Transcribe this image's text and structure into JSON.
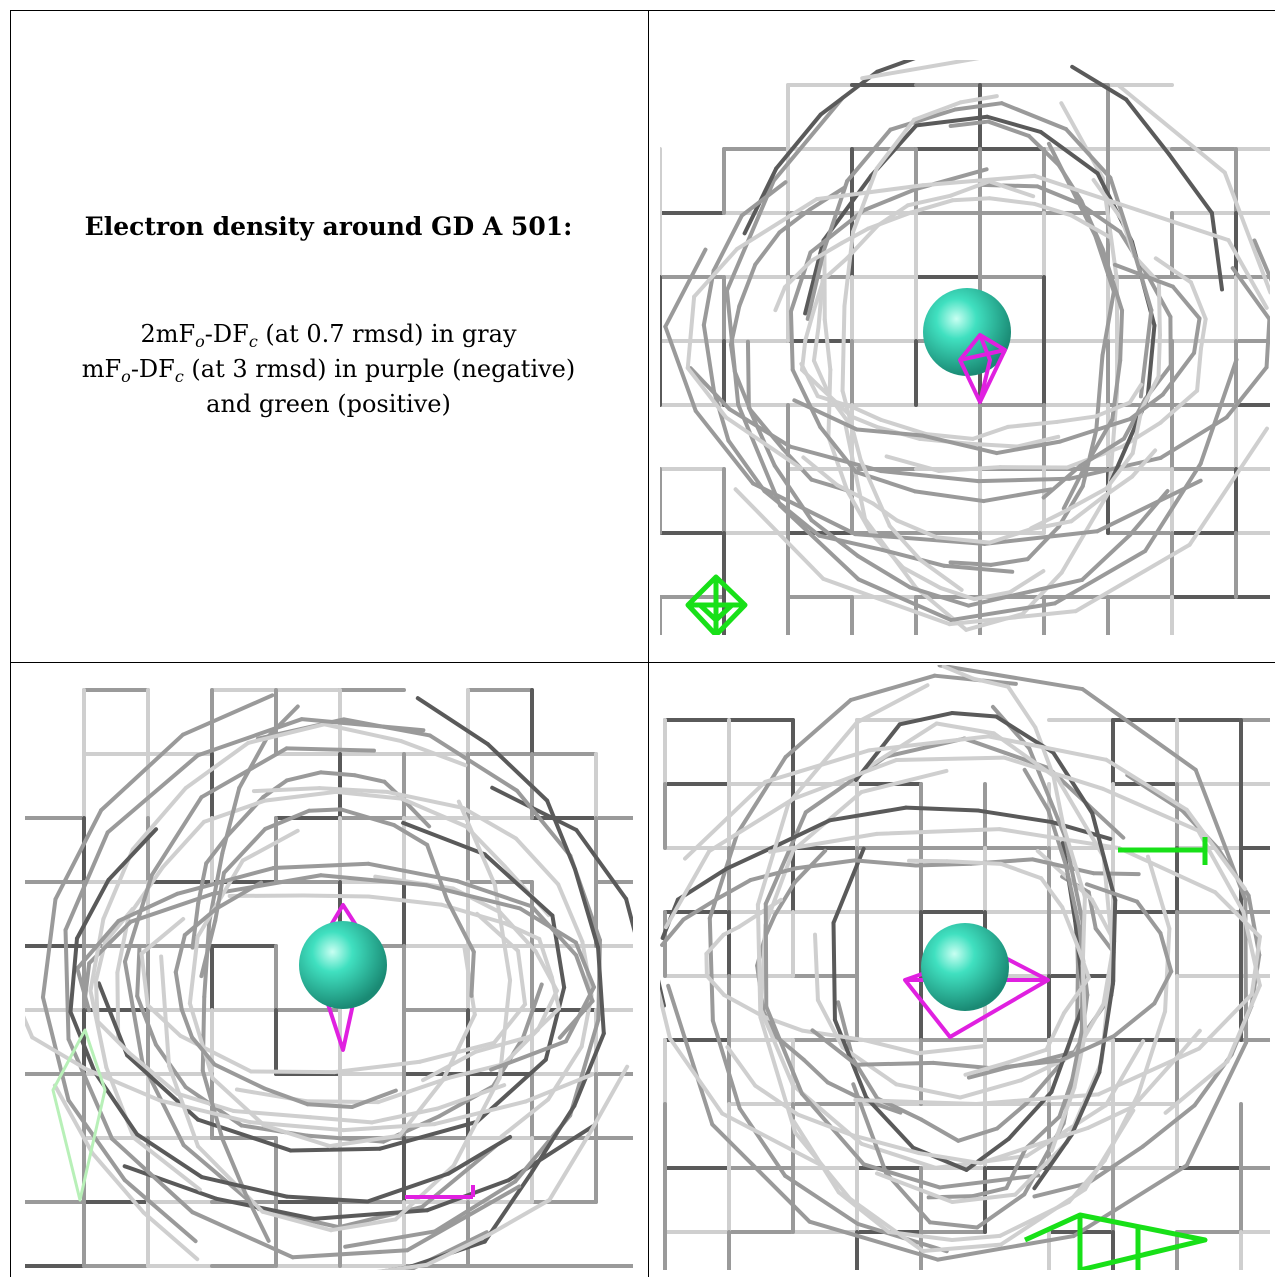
{
  "caption": {
    "title": "Electron density around GD A 501:",
    "line1": {
      "a": "2mF",
      "sub1": "o",
      "b": "-DF",
      "sub2": "c",
      "c": " (at 0.7 rmsd) in gray"
    },
    "line2": {
      "a": "mF",
      "sub1": "o",
      "b": "-DF",
      "sub2": "c",
      "c": " (at 3 rmsd) in purple (negative)"
    },
    "line3": "and green (positive)"
  },
  "colors": {
    "mesh_dark": "#5a5a5a",
    "mesh_mid": "#9a9a9a",
    "mesh_light": "#cfcfcf",
    "atom": "#40e0c0",
    "negative": "#e020e0",
    "positive": "#18e018"
  },
  "panels": [
    {
      "name": "view-1"
    },
    {
      "name": "view-2"
    },
    {
      "name": "view-3"
    }
  ]
}
